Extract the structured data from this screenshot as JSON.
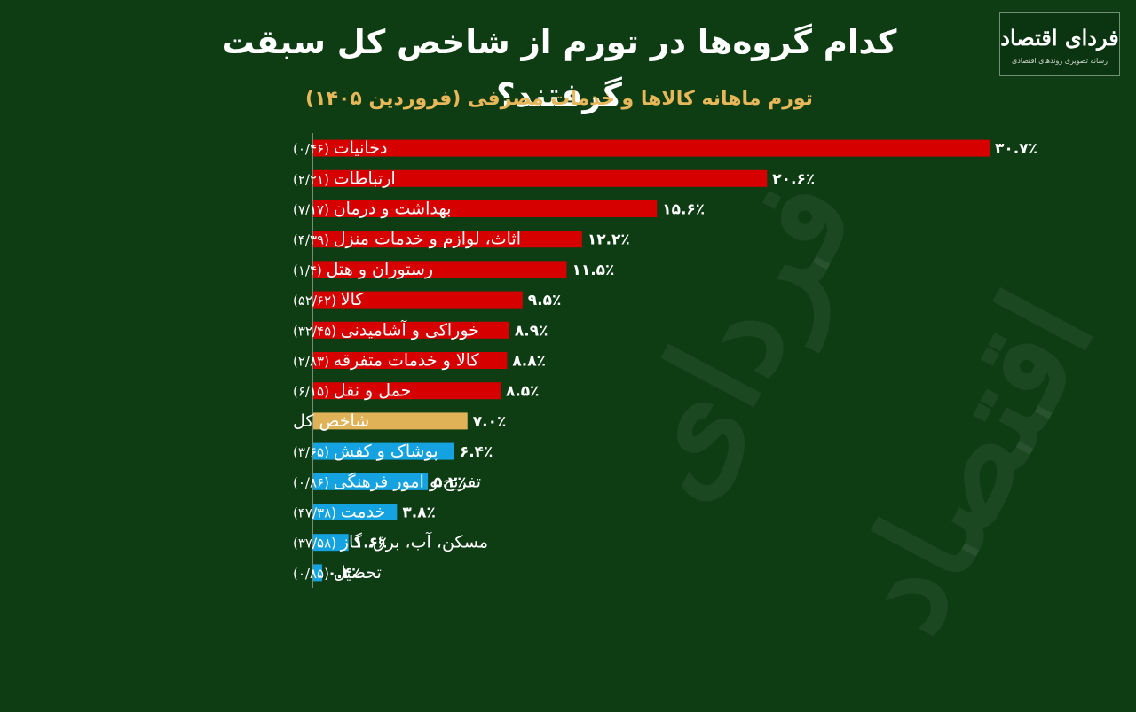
{
  "header": {
    "title": "کدام گروه‌ها در تورم از شاخص کل سبقت گرفتند؟",
    "subtitle": "تورم ماهانه کالاها و خدمات مصرفی (فروردین ۱۴۰۵)"
  },
  "logo": {
    "name": "فردای اقتصاد",
    "tagline": "رسانه تصویری روندهای اقتصادی"
  },
  "colors": {
    "background": "#0e3d14",
    "above": "#d70000",
    "index": "#e0b257",
    "below": "#14a3e0"
  },
  "chart_data": {
    "type": "bar",
    "orientation": "horizontal",
    "title": "کدام گروه‌ها در تورم از شاخص کل سبقت گرفتند؟",
    "subtitle": "تورم ماهانه کالاها و خدمات مصرفی (فروردین ۱۴۰۵)",
    "xlim": [
      0,
      30.7
    ],
    "grid": false,
    "categories": [
      "دخانیات",
      "ارتباطات",
      "بهداشت و درمان",
      "اثاث، لوازم و خدمات منزل",
      "رستوران و هتل",
      "کالا",
      "خوراکی و آشامیدنی",
      "کالا و خدمات متفرقه",
      "حمل و نقل",
      "شاخص کل",
      "پوشاک و کفش",
      "تفریح و امور فرهنگی",
      "خدمت",
      "مسکن، آب، برق، گاز",
      "تحصیل"
    ],
    "weights": [
      "(۰/۴۶)",
      "(۲/۲۱)",
      "(۷/۱۷)",
      "(۴/۳۹)",
      "(۱/۴)",
      "(۵۲/۶۲)",
      "(۳۲/۴۵)",
      "(۲/۸۳)",
      "(۶/۱۵)",
      "",
      "(۳/۶۵)",
      "(۰/۸۶)",
      "(۴۷/۳۸)",
      "(۳۷/۵۸)",
      "(۰/۸۵)"
    ],
    "values": [
      30.7,
      20.6,
      15.6,
      12.2,
      11.5,
      9.5,
      8.9,
      8.8,
      8.5,
      7.0,
      6.4,
      5.2,
      3.8,
      1.6,
      0.4
    ],
    "value_labels": [
      "۳۰.۷٪",
      "۲۰.۶٪",
      "۱۵.۶٪",
      "۱۲.۲٪",
      "۱۱.۵٪",
      "۹.۵٪",
      "۸.۹٪",
      "۸.۸٪",
      "۸.۵٪",
      "۷.۰٪",
      "۶.۴٪",
      "۵.۲٪",
      "۳.۸٪",
      "۱.۶٪",
      "۰.۴٪"
    ],
    "index_category": "شاخص کل"
  }
}
